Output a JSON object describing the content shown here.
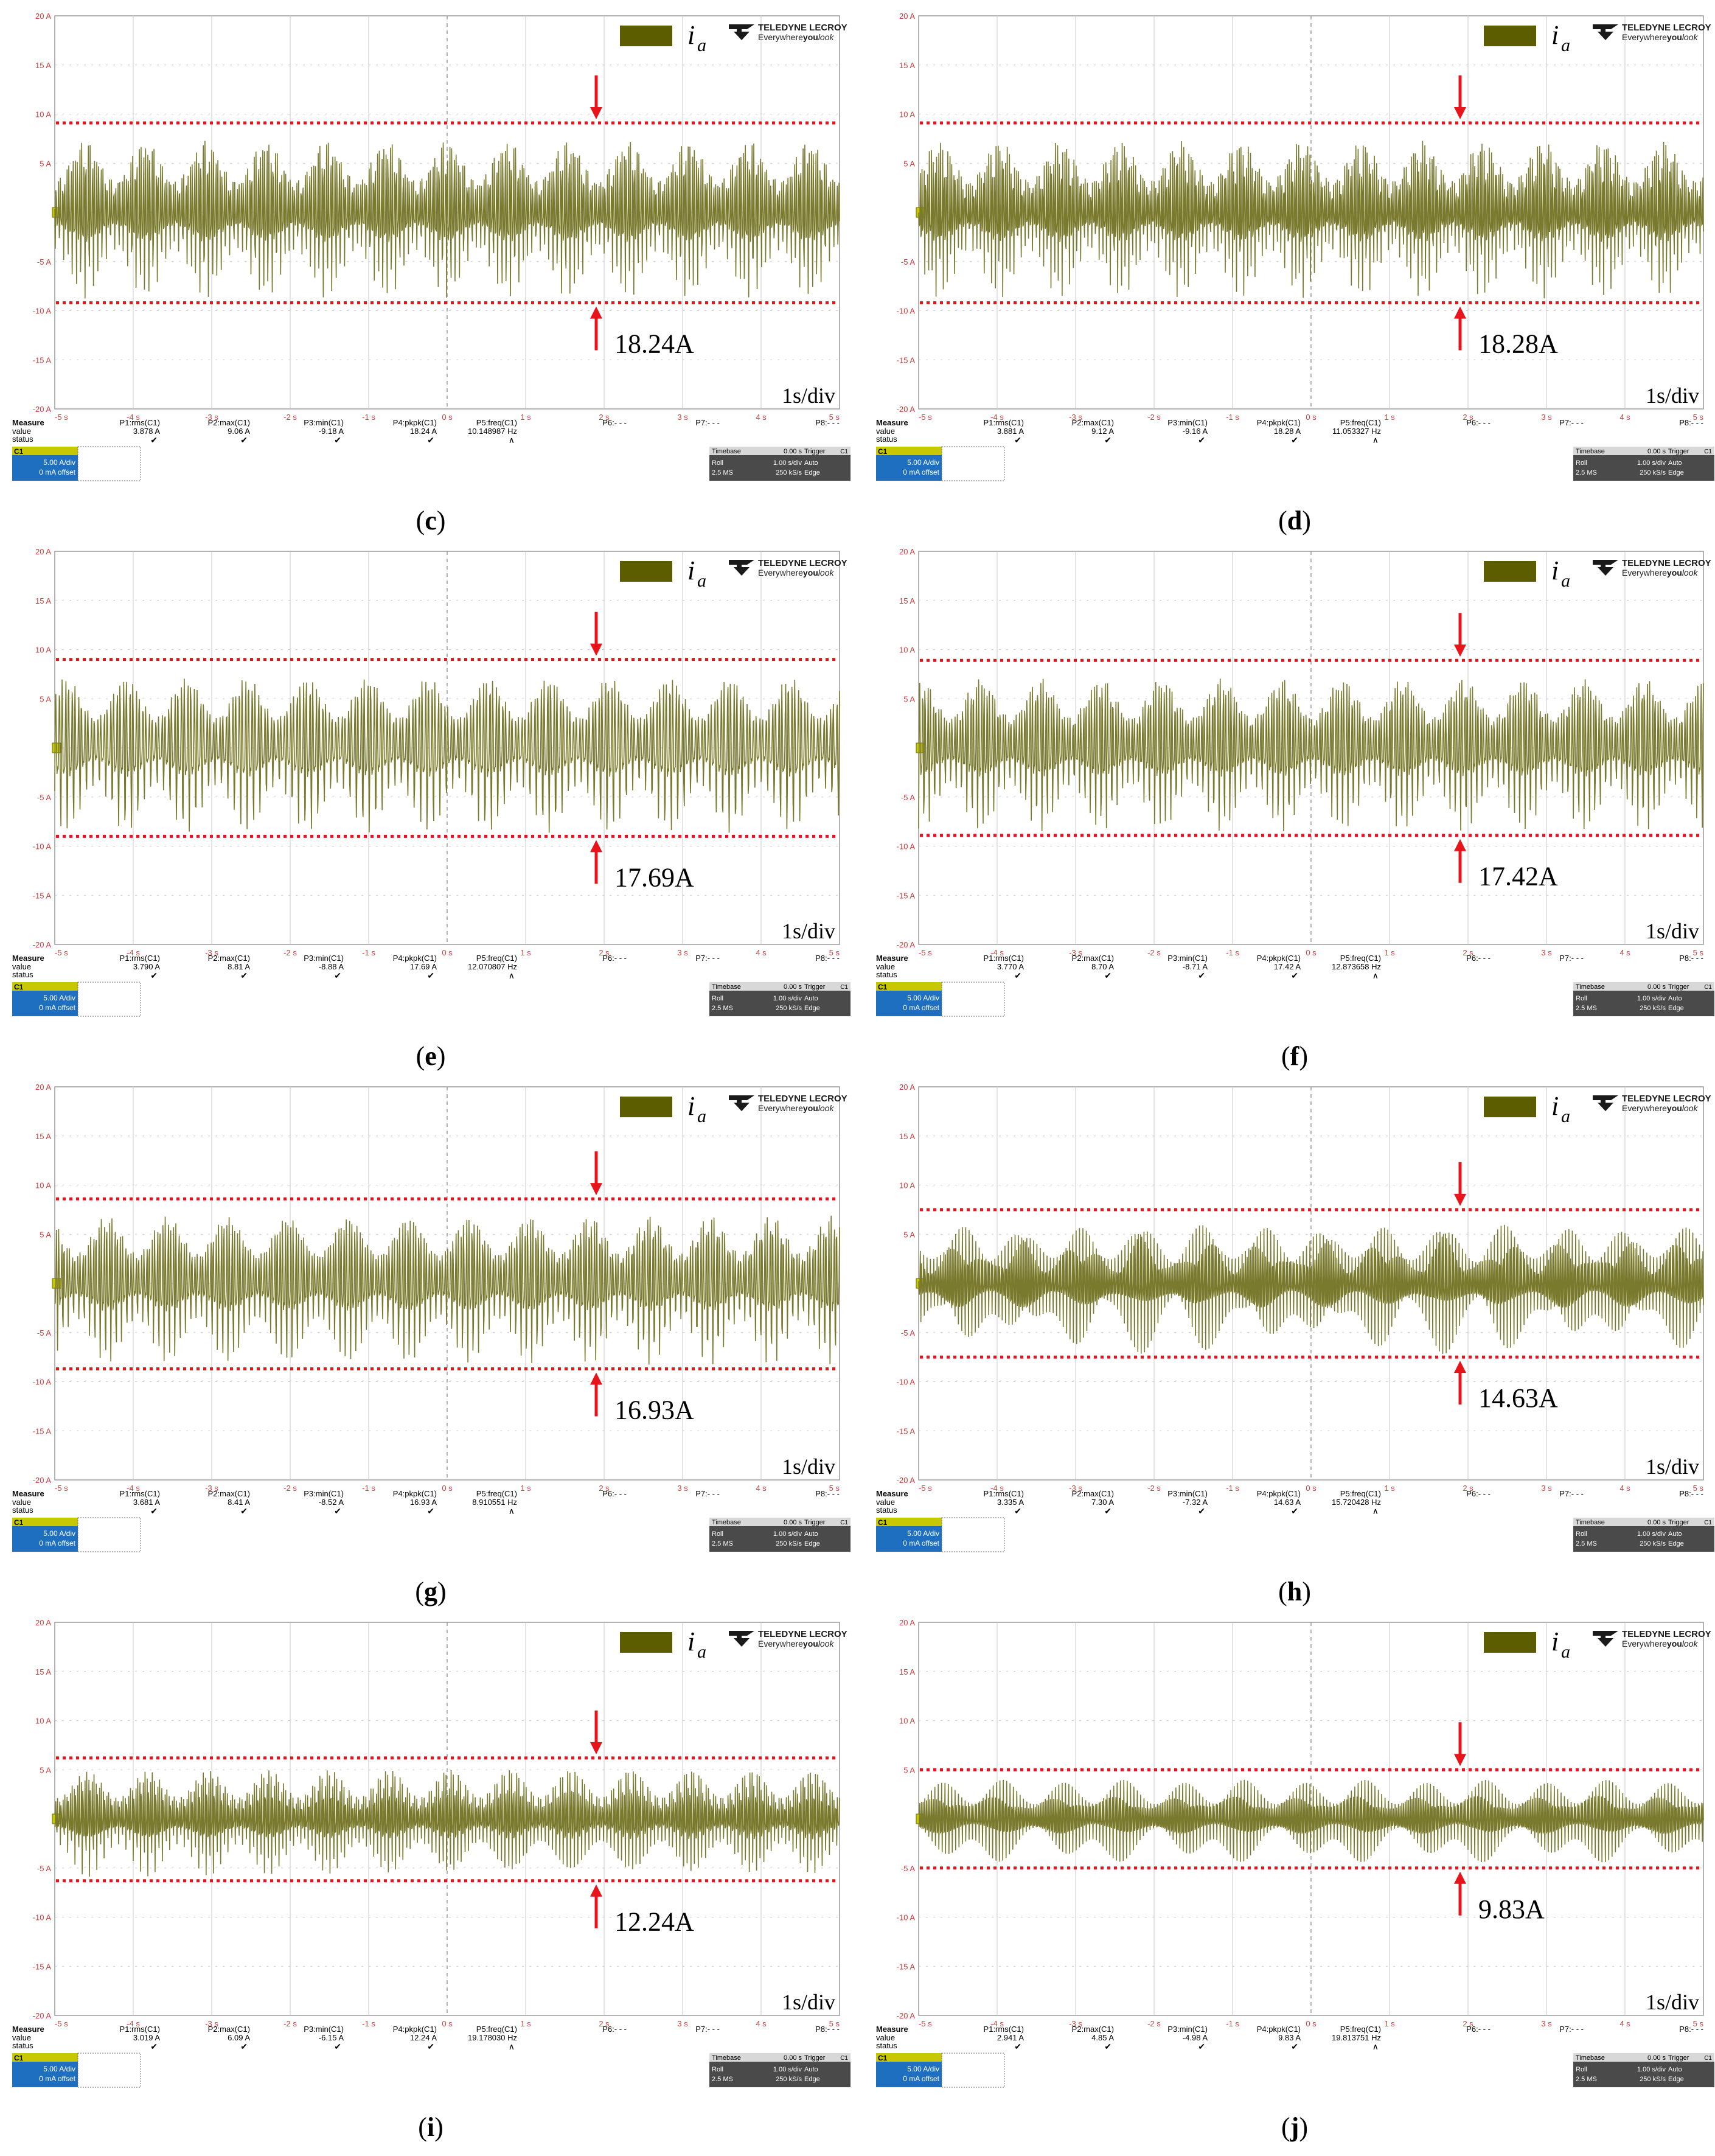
{
  "brand": {
    "name": "TELEDYNE LECROY",
    "tagline_pre": "Everywhere",
    "tagline_bold": "you",
    "tagline_post": "look"
  },
  "trace_label": {
    "main": "i",
    "sub": "a"
  },
  "time_div_label": "1s/div",
  "y_tick_labels": [
    "20 A",
    "15 A",
    "10 A",
    "5 A",
    "",
    "-5 A",
    "-10 A",
    "-15 A",
    "-20 A"
  ],
  "x_tick_labels": [
    "-5 s",
    "-4 s",
    "-3 s",
    "-2 s",
    "-1 s",
    "0 s",
    "1 s",
    "2 s",
    "3 s",
    "4 s",
    "5 s"
  ],
  "measure_headers": [
    "Measure",
    "P1:rms(C1)",
    "P2:max(C1)",
    "P3:min(C1)",
    "P4:pkpk(C1)",
    "P5:freq(C1)",
    "P6:- - -",
    "P7:- - -",
    "P8:- - -"
  ],
  "row_labels": [
    "value",
    "status"
  ],
  "channel": {
    "name": "C1",
    "scale": "5.00 A/div",
    "offset": "0 mA offset"
  },
  "timebase": {
    "title": "Timebase",
    "delay": "0.00 s",
    "mode": "Roll",
    "div": "1.00 s/div",
    "samples": "2.5 MS",
    "rate": "250 kS/s"
  },
  "trigger": {
    "title": "Trigger",
    "badge": "C1",
    "mode": "Auto",
    "type": "Edge"
  },
  "colors": {
    "trace": "#7a7a2e",
    "legend_box": "#5c5c00",
    "limit_line": "#e8141c",
    "arrow": "#e8141c",
    "grid": "#c9c9c9",
    "axis_text": "#c94040",
    "channel_badge": "#c8c800",
    "channel_box": "#1e6fbf",
    "dark_panel": "#4a4a4a"
  },
  "chart_data": [
    {
      "id": "c",
      "caption": "c",
      "type": "line",
      "ylim": [
        -20,
        20
      ],
      "xlim": [
        -5,
        5
      ],
      "xunit": "s",
      "yunit": "A",
      "annotation": "18.24A",
      "upper_limit": 9.1,
      "lower_limit": -9.2,
      "signal_freq_hz": 10.148987,
      "measurements": {
        "rms": "3.878 A",
        "max": "9.06 A",
        "min": "-9.18 A",
        "pkpk": "18.24 A",
        "freq": "10.148987 Hz"
      }
    },
    {
      "id": "d",
      "caption": "d",
      "type": "line",
      "ylim": [
        -20,
        20
      ],
      "xlim": [
        -5,
        5
      ],
      "xunit": "s",
      "yunit": "A",
      "annotation": "18.28A",
      "upper_limit": 9.1,
      "lower_limit": -9.2,
      "signal_freq_hz": 11.053327,
      "measurements": {
        "rms": "3.881 A",
        "max": "9.12 A",
        "min": "-9.16 A",
        "pkpk": "18.28 A",
        "freq": "11.053327 Hz"
      }
    },
    {
      "id": "e",
      "caption": "e",
      "type": "line",
      "ylim": [
        -20,
        20
      ],
      "xlim": [
        -5,
        5
      ],
      "xunit": "s",
      "yunit": "A",
      "annotation": "17.69A",
      "upper_limit": 9.0,
      "lower_limit": -9.0,
      "signal_freq_hz": 12.070807,
      "measurements": {
        "rms": "3.790 A",
        "max": "8.81 A",
        "min": "-8.88 A",
        "pkpk": "17.69 A",
        "freq": "12.070807 Hz"
      }
    },
    {
      "id": "f",
      "caption": "f",
      "type": "line",
      "ylim": [
        -20,
        20
      ],
      "xlim": [
        -5,
        5
      ],
      "xunit": "s",
      "yunit": "A",
      "annotation": "17.42A",
      "upper_limit": 8.9,
      "lower_limit": -8.9,
      "signal_freq_hz": 12.873658,
      "measurements": {
        "rms": "3.770 A",
        "max": "8.70 A",
        "min": "-8.71 A",
        "pkpk": "17.42 A",
        "freq": "12.873658 Hz"
      }
    },
    {
      "id": "g",
      "caption": "g",
      "type": "line",
      "ylim": [
        -20,
        20
      ],
      "xlim": [
        -5,
        5
      ],
      "xunit": "s",
      "yunit": "A",
      "annotation": "16.93A",
      "upper_limit": 8.6,
      "lower_limit": -8.7,
      "signal_freq_hz": 8.910551,
      "measurements": {
        "rms": "3.681 A",
        "max": "8.41 A",
        "min": "-8.52 A",
        "pkpk": "16.93 A",
        "freq": "8.910551 Hz"
      }
    },
    {
      "id": "h",
      "caption": "h",
      "type": "line",
      "ylim": [
        -20,
        20
      ],
      "xlim": [
        -5,
        5
      ],
      "xunit": "s",
      "yunit": "A",
      "annotation": "14.63A",
      "upper_limit": 7.5,
      "lower_limit": -7.5,
      "signal_freq_hz": 15.720428,
      "measurements": {
        "rms": "3.335 A",
        "max": "7.30 A",
        "min": "-7.32 A",
        "pkpk": "14.63 A",
        "freq": "15.720428 Hz"
      }
    },
    {
      "id": "i",
      "caption": "i",
      "type": "line",
      "ylim": [
        -20,
        20
      ],
      "xlim": [
        -5,
        5
      ],
      "xunit": "s",
      "yunit": "A",
      "annotation": "12.24A",
      "upper_limit": 6.2,
      "lower_limit": -6.3,
      "signal_freq_hz": 19.17803,
      "measurements": {
        "rms": "3.019 A",
        "max": "6.09 A",
        "min": "-6.15 A",
        "pkpk": "12.24 A",
        "freq": "19.178030 Hz"
      }
    },
    {
      "id": "j",
      "caption": "j",
      "type": "line",
      "ylim": [
        -20,
        20
      ],
      "xlim": [
        -5,
        5
      ],
      "xunit": "s",
      "yunit": "A",
      "annotation": "9.83A",
      "upper_limit": 5.0,
      "lower_limit": -5.0,
      "signal_freq_hz": 19.813751,
      "measurements": {
        "rms": "2.941 A",
        "max": "4.85 A",
        "min": "-4.98 A",
        "pkpk": "9.83 A",
        "freq": "19.813751 Hz"
      }
    }
  ]
}
